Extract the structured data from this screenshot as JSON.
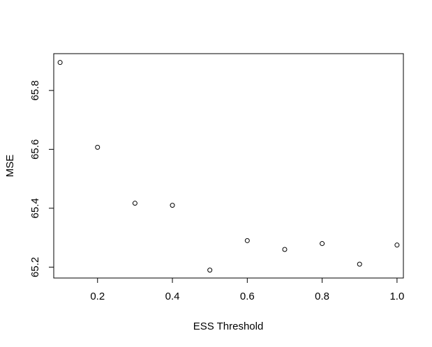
{
  "chart_data": {
    "type": "scatter",
    "title": "",
    "xlabel": "ESS Threshold",
    "ylabel": "MSE",
    "xlim": [
      0.083,
      1.017
    ],
    "ylim": [
      65.163,
      65.925
    ],
    "xticks": [
      0.2,
      0.4,
      0.6,
      0.8,
      1.0
    ],
    "xtick_labels": [
      "0.2",
      "0.4",
      "0.6",
      "0.8",
      "1.0"
    ],
    "yticks": [
      65.2,
      65.4,
      65.6,
      65.8
    ],
    "ytick_labels": [
      "65.2",
      "65.4",
      "65.6",
      "65.8"
    ],
    "grid": false,
    "legend": "none",
    "marker": "open-circle",
    "x": [
      0.1,
      0.2,
      0.3,
      0.4,
      0.5,
      0.6,
      0.7,
      0.8,
      0.9,
      1.0
    ],
    "y": [
      65.895,
      65.607,
      65.417,
      65.41,
      65.19,
      65.29,
      65.26,
      65.28,
      65.21,
      65.275
    ]
  }
}
